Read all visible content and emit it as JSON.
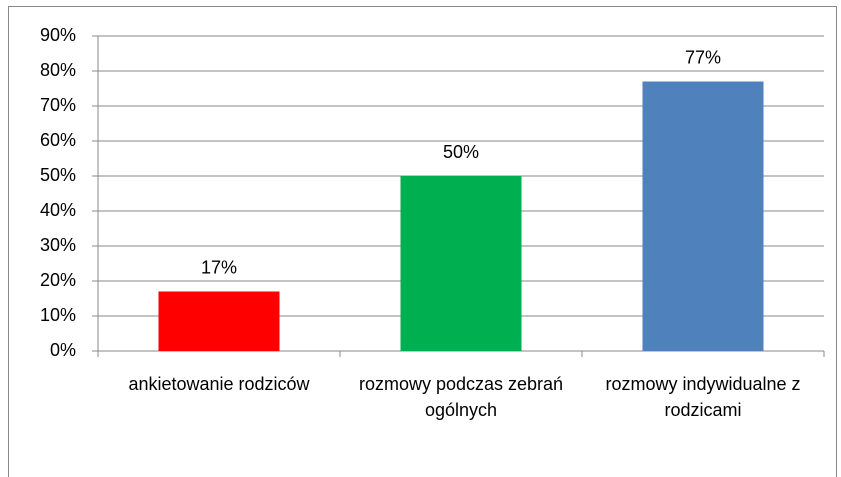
{
  "chart_data": {
    "type": "bar",
    "categories": [
      "ankietowanie rodziców",
      "rozmowy podczas zebrań ogólnych",
      "rozmowy indywidualne z rodzicami"
    ],
    "values": [
      17,
      50,
      77
    ],
    "value_labels": [
      "17%",
      "50%",
      "77%"
    ],
    "colors": [
      "#ff0000",
      "#00b050",
      "#4f81bd"
    ],
    "ylim": [
      0,
      90
    ],
    "yticks": [
      {
        "value": 0,
        "label": "0%"
      },
      {
        "value": 10,
        "label": "10%"
      },
      {
        "value": 20,
        "label": "20%"
      },
      {
        "value": 30,
        "label": "30%"
      },
      {
        "value": 40,
        "label": "40%"
      },
      {
        "value": 50,
        "label": "50%"
      },
      {
        "value": 60,
        "label": "60%"
      },
      {
        "value": 70,
        "label": "70%"
      },
      {
        "value": 80,
        "label": "80%"
      },
      {
        "value": 90,
        "label": "90%"
      }
    ],
    "grid": true
  }
}
